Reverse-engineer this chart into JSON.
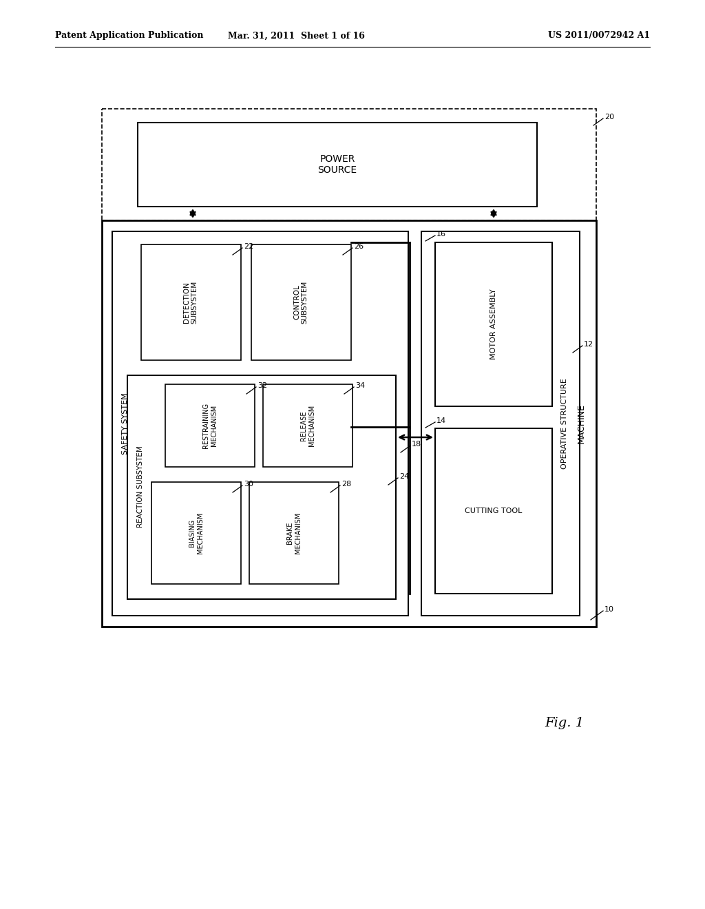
{
  "title_left": "Patent Application Publication",
  "title_mid": "Mar. 31, 2011  Sheet 1 of 16",
  "title_right": "US 2011/0072942 A1",
  "fig_label": "Fig. 1",
  "bg_color": "#ffffff"
}
